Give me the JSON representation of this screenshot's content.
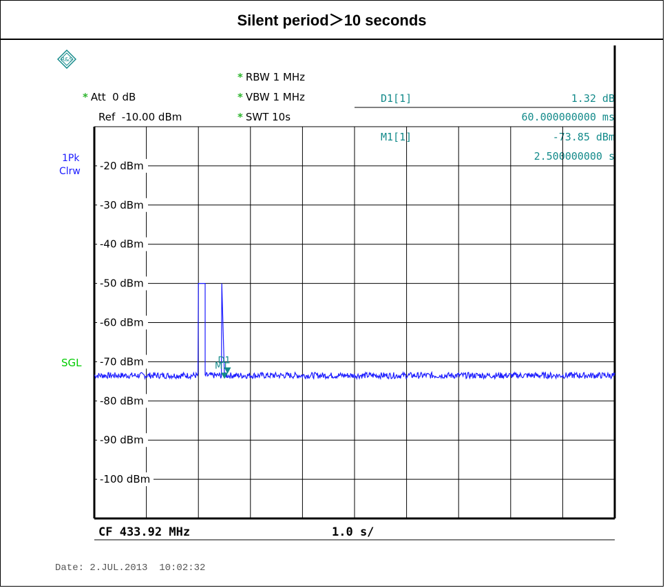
{
  "title": "Silent period＞10 seconds",
  "header": {
    "rbw": "RBW 1 MHz",
    "vbw": "VBW 1 MHz",
    "swt": "SWT 10s",
    "att": "Att  0 dB",
    "ref": "Ref  -10.00 dBm",
    "d1_label": "D1[1]",
    "d1_value": "1.32 dB",
    "d1_time": "60.000000000 ms",
    "m1_label": "M1[1]",
    "m1_value": "-73.85 dBm",
    "m1_time": "2.500000000 s"
  },
  "side": {
    "trace_mode_1": "1Pk",
    "trace_mode_2": "Clrw",
    "sgl": "SGL"
  },
  "footer": {
    "cf": "CF 433.92 MHz",
    "span": "1.0 s/",
    "date": "Date: 2.JUL.2013  10:02:32"
  },
  "colors": {
    "trace": "#1a1aff",
    "marker": "#138a8a",
    "star": "#2db52d",
    "sgl": "#00cc00",
    "side_blue": "#1a1aff"
  },
  "chart_data": {
    "type": "line",
    "title": "Silent period＞10 seconds",
    "xlabel": "",
    "ylabel": "",
    "xlim": [
      0,
      10
    ],
    "ylim": [
      -110,
      -10
    ],
    "y_ticks": [
      {
        "label": "-20 dBm",
        "value": -20
      },
      {
        "label": "-30 dBm",
        "value": -30
      },
      {
        "label": "-40 dBm",
        "value": -40
      },
      {
        "label": "-50 dBm",
        "value": -50
      },
      {
        "label": "-60 dBm",
        "value": -60
      },
      {
        "label": "-70 dBm",
        "value": -70
      },
      {
        "label": "-80 dBm",
        "value": -80
      },
      {
        "label": "-90 dBm",
        "value": -90
      },
      {
        "label": "-100 dBm",
        "value": -100
      }
    ],
    "grid": true,
    "noise_floor_dbm": -73.5,
    "series": [
      {
        "x": [
          0,
          2.0,
          2.0,
          2.13,
          2.13,
          2.45,
          2.45,
          2.5,
          10
        ],
        "y": [
          -73.5,
          -73.5,
          -50.0,
          -50.0,
          -73.5,
          -73.5,
          -50.0,
          -73.5,
          -73.5
        ]
      }
    ],
    "markers": [
      {
        "name": "M1",
        "x": 2.5,
        "y": -73.85
      },
      {
        "name": "D1",
        "x": 2.56,
        "y": -72.5
      }
    ]
  }
}
